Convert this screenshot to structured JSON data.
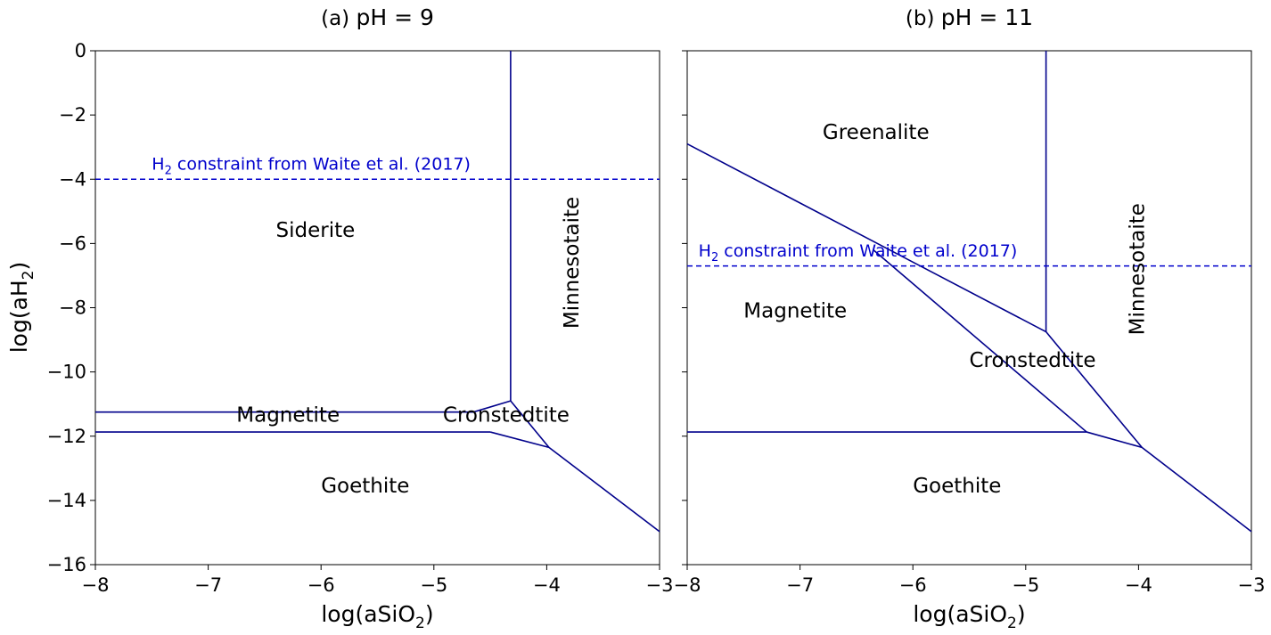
{
  "ylabel": "log(aH",
  "ylabel_sub": "2",
  "ylabel_close": ")",
  "line_color": "#00008b",
  "constraint_color": "#0000cc",
  "chart_data": [
    {
      "type": "line",
      "panel_tag": "(a)",
      "title": "pH = 9",
      "xlabel": "log(aSiO",
      "xlabel_sub": "2",
      "xlabel_close": ")",
      "xlim": [
        -8,
        -3
      ],
      "ylim": [
        -16,
        0
      ],
      "xticks": [
        -8,
        -7,
        -6,
        -5,
        -4,
        -3
      ],
      "yticks": [
        0,
        -2,
        -4,
        -6,
        -8,
        -10,
        -12,
        -14,
        -16
      ],
      "boundaries": [
        [
          [
            -4.32,
            0
          ],
          [
            -4.32,
            -10.9
          ]
        ],
        [
          [
            -8,
            -11.25
          ],
          [
            -4.65,
            -11.25
          ]
        ],
        [
          [
            -4.65,
            -11.25
          ],
          [
            -4.32,
            -10.9
          ]
        ],
        [
          [
            -4.32,
            -10.9
          ],
          [
            -3.98,
            -12.35
          ]
        ],
        [
          [
            -8,
            -11.87
          ],
          [
            -4.5,
            -11.87
          ]
        ],
        [
          [
            -4.5,
            -11.87
          ],
          [
            -3.98,
            -12.35
          ]
        ],
        [
          [
            -3.98,
            -12.35
          ],
          [
            -3,
            -14.97
          ]
        ]
      ],
      "constraint": {
        "y": -4.0,
        "label": "H",
        "label_sub": "2",
        "label_rest": " constraint from Waite et al. (2017)",
        "label_at": [
          -7.5,
          -3.7
        ]
      },
      "regions": [
        {
          "name": "Siderite",
          "at": [
            -6.4,
            -5.8
          ],
          "rotate": false
        },
        {
          "name": "Minnesotaite",
          "at": [
            -3.72,
            -6.6
          ],
          "rotate": true
        },
        {
          "name": "Magnetite",
          "at": [
            -6.75,
            -11.55
          ],
          "rotate": false
        },
        {
          "name": "Cronstedtite",
          "at": [
            -4.92,
            -11.55
          ],
          "rotate": false
        },
        {
          "name": "Goethite",
          "at": [
            -6.0,
            -13.75
          ],
          "rotate": false
        }
      ]
    },
    {
      "type": "line",
      "panel_tag": "(b)",
      "title": "pH = 11",
      "xlabel": "log(aSiO",
      "xlabel_sub": "2",
      "xlabel_close": ")",
      "xlim": [
        -8,
        -3
      ],
      "ylim": [
        -16,
        0
      ],
      "xticks": [
        -8,
        -7,
        -6,
        -5,
        -4,
        -3
      ],
      "yticks": [
        0,
        -2,
        -4,
        -6,
        -8,
        -10,
        -12,
        -14,
        -16
      ],
      "boundaries": [
        [
          [
            -4.82,
            0
          ],
          [
            -4.82,
            -8.75
          ]
        ],
        [
          [
            -8,
            -2.9
          ],
          [
            -4.82,
            -8.75
          ]
        ],
        [
          [
            -4.82,
            -8.75
          ],
          [
            -3.97,
            -12.35
          ]
        ],
        [
          [
            -6.35,
            -6.2
          ],
          [
            -4.46,
            -11.87
          ]
        ],
        [
          [
            -8,
            -11.87
          ],
          [
            -4.46,
            -11.87
          ]
        ],
        [
          [
            -4.46,
            -11.87
          ],
          [
            -3.97,
            -12.35
          ]
        ],
        [
          [
            -3.97,
            -12.35
          ],
          [
            -3,
            -14.97
          ]
        ]
      ],
      "constraint": {
        "y": -6.7,
        "label": "H",
        "label_sub": "2",
        "label_rest": " constraint from Waite et al. (2017)",
        "label_at": [
          -7.9,
          -6.4
        ]
      },
      "regions": [
        {
          "name": "Greenalite",
          "at": [
            -6.8,
            -2.75
          ],
          "rotate": false
        },
        {
          "name": "Minnesotaite",
          "at": [
            -3.95,
            -6.8
          ],
          "rotate": true
        },
        {
          "name": "Magnetite",
          "at": [
            -7.5,
            -8.3
          ],
          "rotate": false
        },
        {
          "name": "Cronstedtite",
          "at": [
            -5.5,
            -9.85
          ],
          "rotate": false
        },
        {
          "name": "Goethite",
          "at": [
            -6.0,
            -13.75
          ],
          "rotate": false
        }
      ]
    }
  ]
}
